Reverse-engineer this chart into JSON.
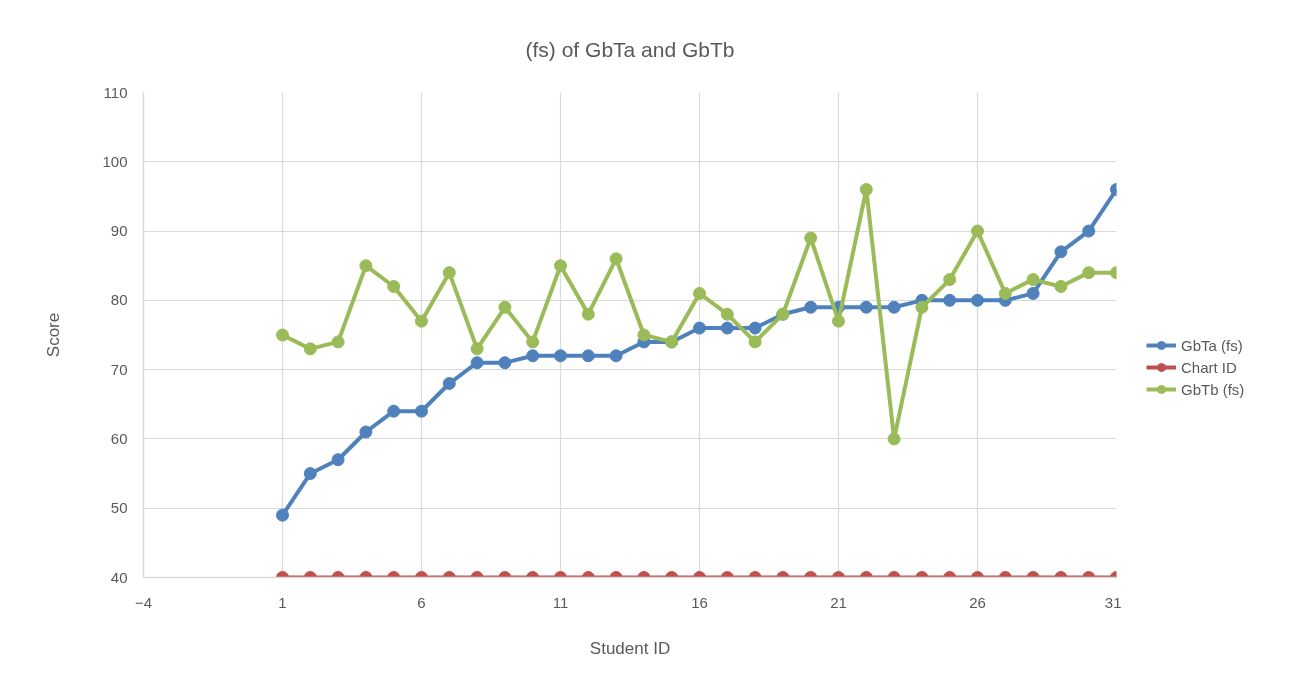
{
  "chart_data": {
    "type": "line",
    "title": "(fs) of GbTa and GbTb",
    "xlabel": "Student ID",
    "ylabel": "Score",
    "x": [
      1,
      2,
      3,
      4,
      5,
      6,
      7,
      8,
      9,
      10,
      11,
      12,
      13,
      14,
      15,
      16,
      17,
      18,
      19,
      20,
      21,
      22,
      23,
      24,
      25,
      26,
      27,
      28,
      29,
      30,
      31
    ],
    "series": [
      {
        "name": "GbTa (fs)",
        "color": "#4f81bd",
        "values": [
          49,
          55,
          57,
          61,
          64,
          64,
          68,
          71,
          71,
          72,
          72,
          72,
          72,
          74,
          74,
          76,
          76,
          76,
          78,
          79,
          79,
          79,
          79,
          80,
          80,
          80,
          80,
          81,
          87,
          90,
          96
        ]
      },
      {
        "name": "Chart ID",
        "color": "#c0504d",
        "values": [
          40,
          40,
          40,
          40,
          40,
          40,
          40,
          40,
          40,
          40,
          40,
          40,
          40,
          40,
          40,
          40,
          40,
          40,
          40,
          40,
          40,
          40,
          40,
          40,
          40,
          40,
          40,
          40,
          40,
          40,
          40
        ]
      },
      {
        "name": "GbTb (fs)",
        "color": "#9bbb59",
        "values": [
          75,
          73,
          74,
          85,
          82,
          77,
          84,
          73,
          79,
          74,
          85,
          78,
          86,
          75,
          74,
          81,
          78,
          74,
          78,
          89,
          77,
          96,
          60,
          79,
          83,
          90,
          81,
          83,
          82,
          84,
          84
        ]
      }
    ],
    "xlim": [
      -4,
      31
    ],
    "xticks": [
      -4,
      1,
      6,
      11,
      16,
      21,
      26,
      31
    ],
    "ylim": [
      40,
      110
    ],
    "yticks": [
      40,
      50,
      60,
      70,
      80,
      90,
      100,
      110
    ],
    "grid": true,
    "legend": "right",
    "marker": "circle",
    "line_style": "solid"
  }
}
